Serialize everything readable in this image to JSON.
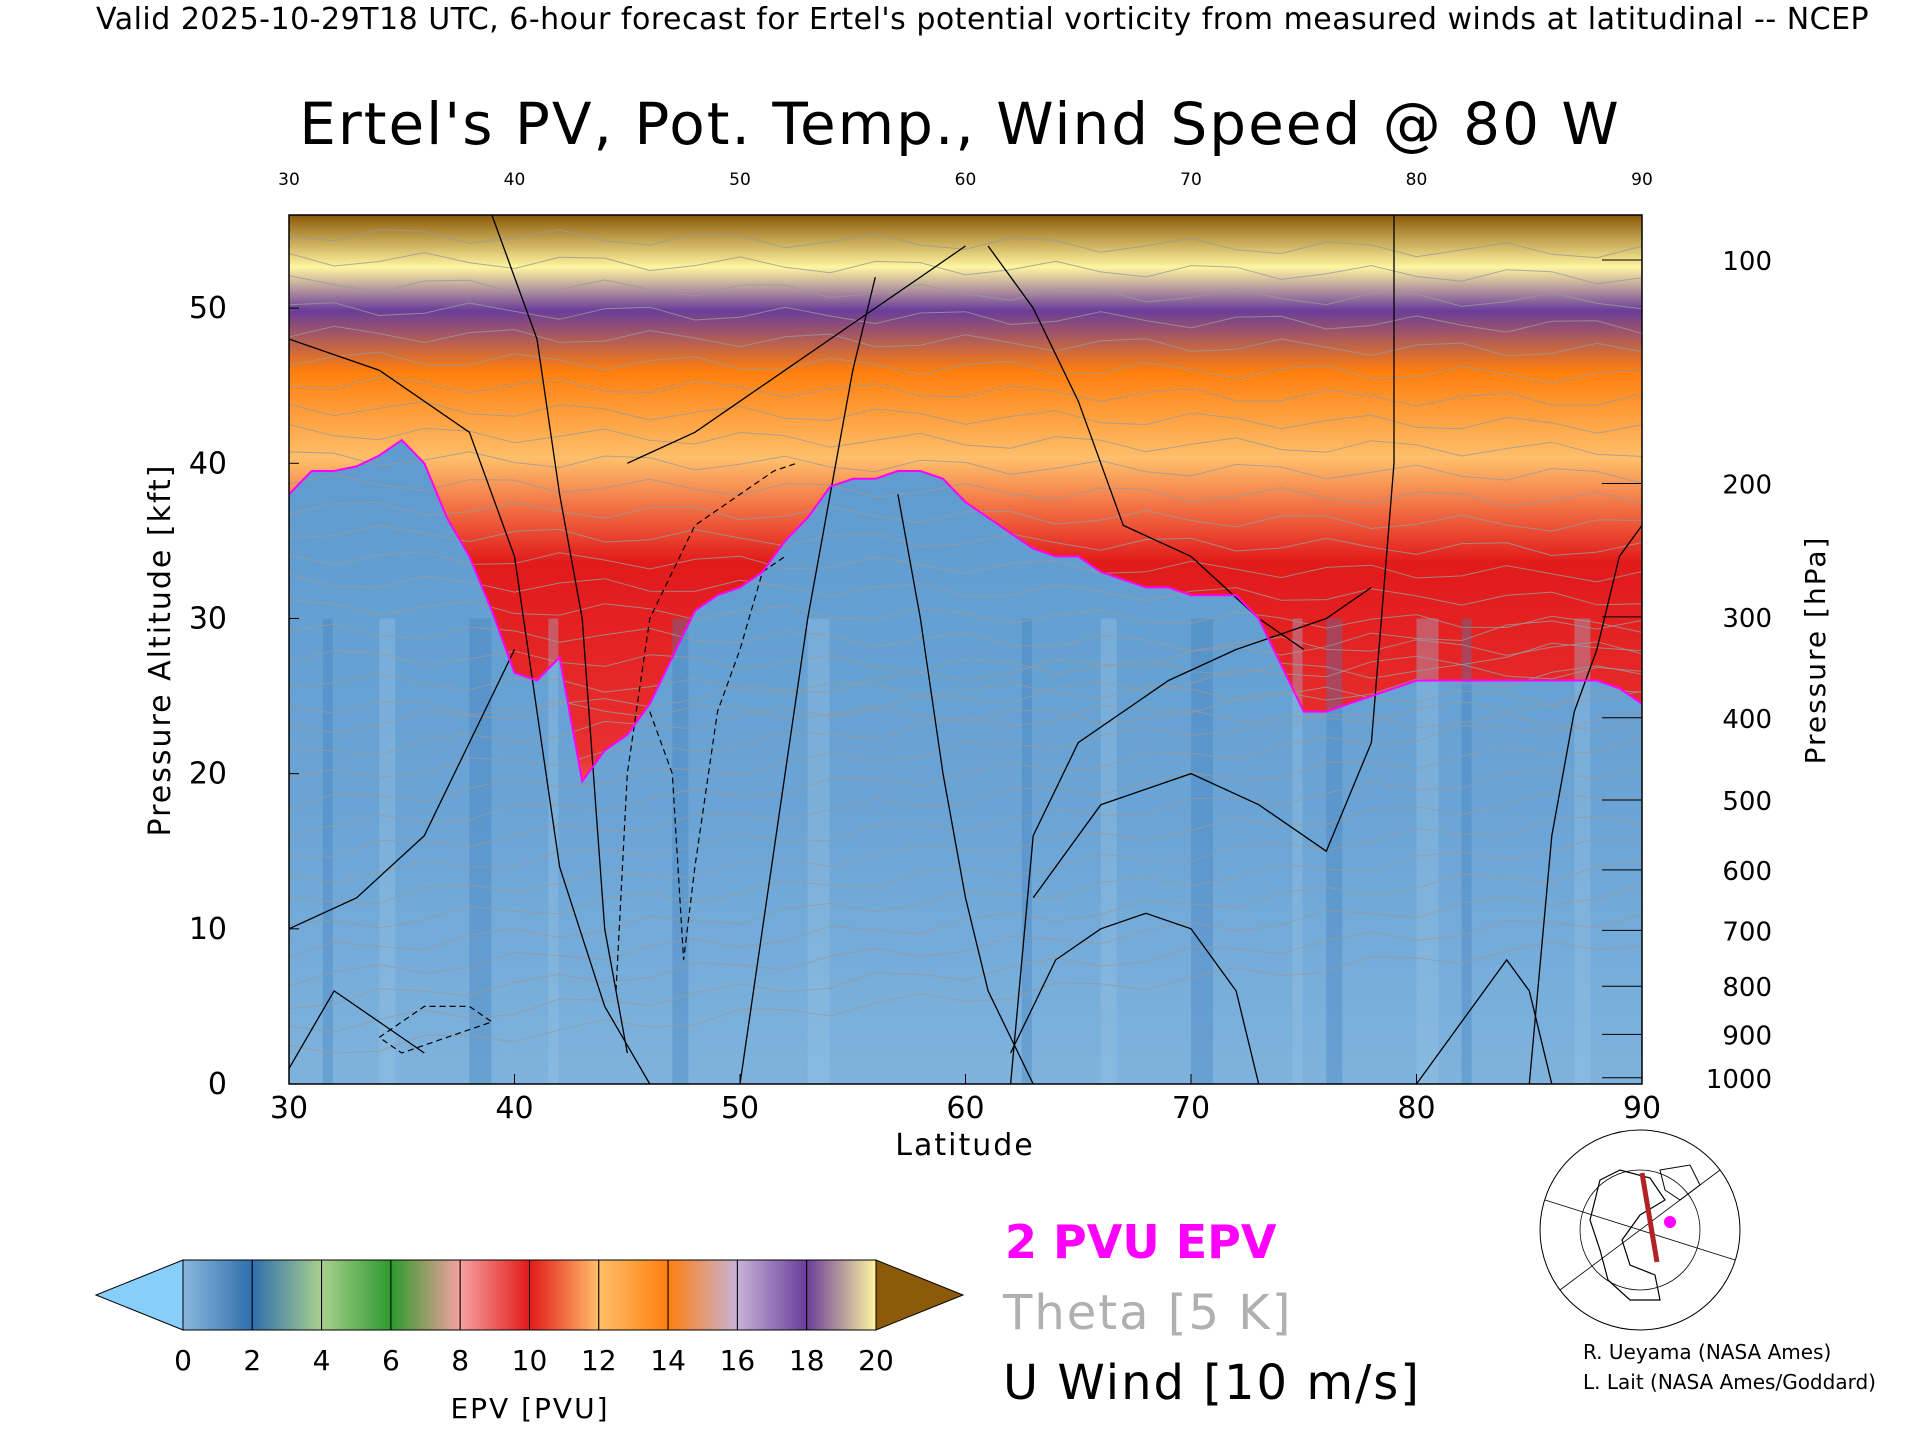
{
  "header": {
    "valid_line": "Valid 2025-10-29T18 UTC, 6-hour forecast for Ertel's potential vorticity from measured winds at latitudinal -- NCEP"
  },
  "chart_data": {
    "type": "heatmap",
    "title": "Ertel's PV, Pot. Temp., Wind Speed @ 80 W",
    "xlabel": "Latitude",
    "ylabel_left": "Pressure Altitude [kft]",
    "ylabel_right": "Pressure [hPa]",
    "xlim": [
      30,
      90
    ],
    "ylim": [
      0,
      56
    ],
    "x_ticks": [
      "30",
      "40",
      "50",
      "60",
      "70",
      "80",
      "90"
    ],
    "y_ticks": [
      "0",
      "10",
      "20",
      "30",
      "40",
      "50"
    ],
    "pressure_ticks": [
      {
        "label": "100",
        "kft": 53.1
      },
      {
        "label": "200",
        "kft": 38.7
      },
      {
        "label": "300",
        "kft": 30.1
      },
      {
        "label": "400",
        "kft": 23.6
      },
      {
        "label": "500",
        "kft": 18.3
      },
      {
        "label": "600",
        "kft": 13.8
      },
      {
        "label": "700",
        "kft": 9.9
      },
      {
        "label": "800",
        "kft": 6.3
      },
      {
        "label": "900",
        "kft": 3.2
      },
      {
        "label": "1000",
        "kft": 0.4
      }
    ],
    "tropopause_2pvu_kft": [
      [
        30,
        38
      ],
      [
        31,
        39.5
      ],
      [
        32,
        39.5
      ],
      [
        33,
        39.8
      ],
      [
        34,
        40.5
      ],
      [
        35,
        41.5
      ],
      [
        36,
        40
      ],
      [
        37,
        36.5
      ],
      [
        38,
        34
      ],
      [
        39,
        30.5
      ],
      [
        40,
        26.5
      ],
      [
        41,
        26
      ],
      [
        42,
        27.5
      ],
      [
        43,
        19.5
      ],
      [
        44,
        21.5
      ],
      [
        45,
        22.5
      ],
      [
        46,
        24.5
      ],
      [
        47,
        27.5
      ],
      [
        48,
        30.5
      ],
      [
        49,
        31.5
      ],
      [
        50,
        32
      ],
      [
        51,
        33
      ],
      [
        52,
        35
      ],
      [
        53,
        36.5
      ],
      [
        54,
        38.5
      ],
      [
        55,
        39
      ],
      [
        56,
        39
      ],
      [
        57,
        39.5
      ],
      [
        58,
        39.5
      ],
      [
        59,
        39
      ],
      [
        60,
        37.5
      ],
      [
        61,
        36.5
      ],
      [
        62,
        35.5
      ],
      [
        63,
        34.5
      ],
      [
        64,
        34
      ],
      [
        65,
        34
      ],
      [
        66,
        33
      ],
      [
        67,
        32.5
      ],
      [
        68,
        32
      ],
      [
        69,
        32
      ],
      [
        70,
        31.5
      ],
      [
        71,
        31.5
      ],
      [
        72,
        31.5
      ],
      [
        73,
        30
      ],
      [
        74,
        27
      ],
      [
        75,
        24
      ],
      [
        76,
        24
      ],
      [
        77,
        24.5
      ],
      [
        78,
        25
      ],
      [
        79,
        25.5
      ],
      [
        80,
        26
      ],
      [
        81,
        26
      ],
      [
        82,
        26
      ],
      [
        83,
        26
      ],
      [
        84,
        26
      ],
      [
        85,
        26
      ],
      [
        86,
        26
      ],
      [
        87,
        26
      ],
      [
        88,
        26
      ],
      [
        89,
        25.5
      ],
      [
        90,
        24.5
      ]
    ],
    "colorbar": {
      "label": "EPV [PVU]",
      "ticks": [
        "0",
        "2",
        "4",
        "6",
        "8",
        "10",
        "12",
        "14",
        "16",
        "18",
        "20"
      ],
      "under_color": "#87cefa",
      "over_color": "#8b5a0a",
      "colors": [
        "#8ab8dc",
        "#2f6fae",
        "#a9d08e",
        "#2e9a2e",
        "#f7a1a1",
        "#e21a1a",
        "#ffbf6b",
        "#ff7f0e",
        "#c8b3d8",
        "#6a3d9a",
        "#fff5a0",
        "#8b5a0a"
      ]
    },
    "overlays": [
      "2 PVU EPV",
      "Theta [5 K]",
      "U Wind [10 m/s]"
    ],
    "colors": {
      "pvu_contour": "#ff00ff",
      "theta": "#aaaaaa",
      "wind": "#000000"
    }
  },
  "legend": {
    "pvu": "2 PVU EPV",
    "theta": "Theta [5 K]",
    "uwind": "U Wind [10 m/s]"
  },
  "credits": {
    "line1": "R. Ueyama (NASA Ames)",
    "line2": "L. Lait (NASA Ames/Goddard)"
  }
}
